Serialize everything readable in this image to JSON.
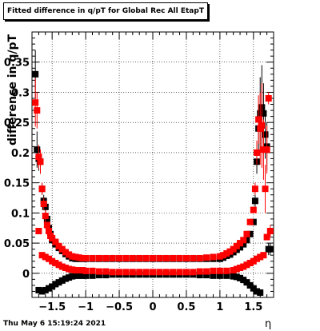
{
  "title": "Fitted difference in q/pT for Global Rec All EtapT",
  "timestamp": "Thu May  6 15:19:24 2021",
  "chart_data": {
    "type": "scatter",
    "title": "Fitted difference in q/pT for Global Rec All EtapT",
    "xlabel": "η",
    "ylabel": "difference in q/pT",
    "xlim": [
      -1.8,
      1.8
    ],
    "ylim": [
      -0.04,
      0.4
    ],
    "grid": true,
    "xticks": [
      -1.5,
      -1,
      -0.5,
      0,
      0.5,
      1,
      1.5
    ],
    "xtick_labels": [
      "−1.5",
      "−1",
      "−0.5",
      "0",
      "0.5",
      "1",
      "1.5"
    ],
    "yticks": [
      0,
      0.05,
      0.1,
      0.15,
      0.2,
      0.25,
      0.3,
      0.35
    ],
    "ytick_labels": [
      "0",
      "0.05",
      "0.1",
      "0.15",
      "0.2",
      "0.25",
      "0.3",
      "0.35"
    ],
    "series": [
      {
        "color": "#000000",
        "x": [
          -1.75,
          -1.725,
          -1.7,
          -1.675,
          -1.65,
          -1.625,
          -1.6,
          -1.575,
          -1.55,
          -1.525,
          -1.5,
          -1.45,
          -1.4,
          -1.35,
          -1.3,
          -1.25,
          -1.2,
          -1.15,
          -1.1,
          -1.05,
          -1.0,
          -0.9,
          -0.8,
          -0.7,
          -0.6,
          -0.5,
          -0.4,
          -0.3,
          -0.2,
          -0.1,
          0.0,
          0.1,
          0.2,
          0.3,
          0.4,
          0.5,
          0.6,
          0.7,
          0.8,
          0.9,
          1.0,
          1.05,
          1.1,
          1.15,
          1.2,
          1.25,
          1.3,
          1.35,
          1.4,
          1.45,
          1.5,
          1.525,
          1.55,
          1.575,
          1.6,
          1.625,
          1.65,
          1.675,
          1.7,
          1.725,
          1.75
        ],
        "y": [
          0.33,
          0.205,
          0.19,
          0.185,
          0.14,
          0.12,
          0.11,
          0.09,
          0.075,
          0.065,
          0.055,
          0.048,
          0.042,
          0.037,
          0.032,
          0.028,
          0.025,
          0.024,
          0.024,
          0.024,
          0.024,
          0.024,
          0.024,
          0.024,
          0.024,
          0.024,
          0.024,
          0.024,
          0.024,
          0.024,
          0.024,
          0.024,
          0.024,
          0.024,
          0.024,
          0.024,
          0.024,
          0.024,
          0.024,
          0.024,
          0.024,
          0.026,
          0.029,
          0.031,
          0.035,
          0.039,
          0.043,
          0.048,
          0.055,
          0.065,
          0.085,
          0.12,
          0.185,
          0.24,
          0.265,
          0.275,
          0.265,
          0.23,
          0.21,
          0.04,
          0.04
        ],
        "yerr": [
          0.04,
          0.03,
          0.02,
          0.02,
          0.01,
          0.01,
          0.01,
          0.005,
          0.005,
          0.005,
          0.004,
          0.003,
          0.003,
          0.002,
          0.002,
          0.002,
          0.002,
          0.002,
          0.002,
          0.002,
          0.002,
          0.002,
          0.002,
          0.002,
          0.002,
          0.002,
          0.002,
          0.002,
          0.002,
          0.002,
          0.002,
          0.002,
          0.002,
          0.002,
          0.002,
          0.002,
          0.002,
          0.002,
          0.002,
          0.002,
          0.002,
          0.002,
          0.002,
          0.002,
          0.002,
          0.002,
          0.002,
          0.003,
          0.003,
          0.004,
          0.005,
          0.01,
          0.02,
          0.04,
          0.06,
          0.07,
          0.05,
          0.04,
          0.04,
          0.01,
          0.01
        ]
      },
      {
        "color": "#000000",
        "x": [
          -1.7,
          -1.65,
          -1.6,
          -1.55,
          -1.5,
          -1.45,
          -1.4,
          -1.35,
          -1.3,
          -1.25,
          -1.2,
          -1.15,
          -1.1,
          -1.05,
          -1.0,
          -0.9,
          -0.8,
          -0.7,
          -0.6,
          -0.5,
          -0.4,
          -0.3,
          -0.2,
          -0.1,
          0.0,
          0.1,
          0.2,
          0.3,
          0.4,
          0.5,
          0.6,
          0.7,
          0.8,
          0.9,
          1.0,
          1.1,
          1.2,
          1.25,
          1.3,
          1.35,
          1.4,
          1.45,
          1.5,
          1.55,
          1.6
        ],
        "y": [
          -0.028,
          -0.03,
          -0.028,
          -0.025,
          -0.022,
          -0.018,
          -0.015,
          -0.012,
          -0.009,
          -0.007,
          -0.005,
          -0.004,
          -0.004,
          -0.004,
          -0.004,
          -0.004,
          -0.003,
          -0.003,
          -0.002,
          -0.002,
          -0.002,
          -0.002,
          -0.002,
          -0.002,
          -0.002,
          -0.002,
          -0.002,
          -0.002,
          -0.002,
          -0.002,
          -0.002,
          -0.003,
          -0.003,
          -0.004,
          -0.004,
          -0.004,
          -0.005,
          -0.006,
          -0.008,
          -0.011,
          -0.015,
          -0.02,
          -0.025,
          -0.03,
          -0.032
        ]
      },
      {
        "color": "#ff0000",
        "x": [
          -1.75,
          -1.725,
          -1.7,
          -1.675,
          -1.65,
          -1.625,
          -1.6,
          -1.575,
          -1.55,
          -1.525,
          -1.5,
          -1.45,
          -1.4,
          -1.35,
          -1.3,
          -1.25,
          -1.2,
          -1.15,
          -1.1,
          -1.05,
          -1.0,
          -0.9,
          -0.8,
          -0.7,
          -0.6,
          -0.5,
          -0.4,
          -0.3,
          -0.2,
          -0.1,
          0.0,
          0.1,
          0.2,
          0.3,
          0.4,
          0.5,
          0.6,
          0.7,
          0.8,
          0.9,
          1.0,
          1.05,
          1.1,
          1.15,
          1.2,
          1.25,
          1.3,
          1.35,
          1.4,
          1.45,
          1.5,
          1.525,
          1.55,
          1.575,
          1.6,
          1.625,
          1.65,
          1.675,
          1.7,
          1.725,
          1.75
        ],
        "y": [
          0.283,
          0.27,
          0.193,
          0.185,
          0.14,
          0.115,
          0.095,
          0.08,
          0.07,
          0.062,
          0.058,
          0.052,
          0.045,
          0.04,
          0.035,
          0.031,
          0.028,
          0.027,
          0.026,
          0.025,
          0.025,
          0.025,
          0.025,
          0.025,
          0.025,
          0.025,
          0.025,
          0.025,
          0.025,
          0.025,
          0.025,
          0.025,
          0.025,
          0.025,
          0.025,
          0.025,
          0.025,
          0.025,
          0.026,
          0.027,
          0.028,
          0.03,
          0.033,
          0.036,
          0.04,
          0.045,
          0.05,
          0.055,
          0.065,
          0.085,
          0.105,
          0.14,
          0.2,
          0.255,
          0.24,
          0.245,
          0.205,
          0.14,
          0.205,
          0.29,
          0.07
        ],
        "yerr": [
          0.04,
          0.03,
          0.02,
          0.02,
          0.01,
          0.01,
          0.01,
          0.005,
          0.005,
          0.005,
          0.004,
          0.003,
          0.003,
          0.002,
          0.002,
          0.002,
          0.002,
          0.002,
          0.002,
          0.002,
          0.002,
          0.002,
          0.002,
          0.002,
          0.002,
          0.002,
          0.002,
          0.002,
          0.002,
          0.002,
          0.002,
          0.002,
          0.002,
          0.002,
          0.002,
          0.002,
          0.002,
          0.002,
          0.002,
          0.002,
          0.002,
          0.002,
          0.002,
          0.002,
          0.002,
          0.002,
          0.002,
          0.003,
          0.003,
          0.004,
          0.005,
          0.01,
          0.02,
          0.04,
          0.06,
          0.07,
          0.05,
          0.04,
          0.04,
          0.01,
          0.01
        ]
      },
      {
        "color": "#ff0000",
        "x": [
          -1.7,
          -1.65,
          -1.6,
          -1.55,
          -1.5,
          -1.45,
          -1.4,
          -1.35,
          -1.3,
          -1.25,
          -1.2,
          -1.15,
          -1.1,
          -1.05,
          -1.0,
          -0.9,
          -0.8,
          -0.7,
          -0.6,
          -0.5,
          -0.4,
          -0.3,
          -0.2,
          -0.1,
          0.0,
          0.1,
          0.2,
          0.3,
          0.4,
          0.5,
          0.6,
          0.7,
          0.8,
          0.9,
          1.0,
          1.1,
          1.2,
          1.25,
          1.3,
          1.35,
          1.4,
          1.45,
          1.5,
          1.55,
          1.6,
          1.65,
          1.7
        ],
        "y": [
          0.07,
          0.03,
          0.027,
          0.024,
          0.02,
          0.017,
          0.014,
          0.011,
          0.009,
          0.007,
          0.006,
          0.005,
          0.005,
          0.005,
          0.004,
          0.004,
          0.003,
          0.003,
          0.002,
          0.002,
          0.002,
          0.002,
          0.002,
          0.002,
          0.002,
          0.002,
          0.002,
          0.002,
          0.002,
          0.002,
          0.002,
          0.003,
          0.003,
          0.004,
          0.004,
          0.004,
          0.005,
          0.007,
          0.009,
          0.011,
          0.014,
          0.017,
          0.02,
          0.024,
          0.027,
          0.03,
          0.06
        ]
      }
    ]
  }
}
